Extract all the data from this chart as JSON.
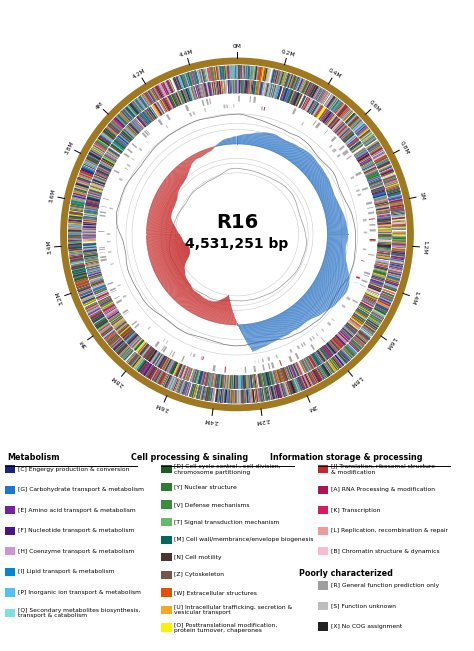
{
  "title": "R16",
  "subtitle": "4,531,251 bp",
  "genome_size": 4531251,
  "background_color": "#ffffff",
  "outer_ring_color": "#a07820",
  "tick_labels": [
    "0M",
    "0.2M",
    "0.4M",
    "0.6M",
    "0.8M",
    "1M",
    "1.2M",
    "1.4M",
    "1.6M",
    "1.8M",
    "2M",
    "2.2M",
    "2.4M",
    "2.6M",
    "2.8M",
    "3M",
    "3.2M",
    "3.4M",
    "3.6M",
    "3.8M",
    "4M",
    "4.2M",
    "4.4M"
  ],
  "cog_colors": {
    "C": "#1a237e",
    "G": "#1976d2",
    "E": "#7b1fa2",
    "F": "#4a148c",
    "H": "#ce93d8",
    "I": "#0288d1",
    "P": "#4fc3f7",
    "Q": "#80deea",
    "D": "#1b5e20",
    "Y": "#2e7d32",
    "V": "#388e3c",
    "T": "#66bb6a",
    "M": "#00695c",
    "N": "#4e342e",
    "Z": "#795548",
    "W": "#e65100",
    "U": "#f9a825",
    "O": "#f9f107",
    "J": "#c62828",
    "A": "#ad1457",
    "K": "#d81b60",
    "L": "#ef9a9a",
    "B": "#f8bbd0",
    "R": "#9e9e9e",
    "S": "#bdbdbd",
    "X": "#212121"
  },
  "legend_metabolism": [
    {
      "code": "C",
      "color": "#1a237e",
      "label": "[C] Engergy production & conversion"
    },
    {
      "code": "G",
      "color": "#1976d2",
      "label": "[G] Carbohydrate transport & metabolism"
    },
    {
      "code": "E",
      "color": "#7b1fa2",
      "label": "[E] Amino acid transport & metabolism"
    },
    {
      "code": "F",
      "color": "#4a148c",
      "label": "[F] Nucleotide transport & metabolism"
    },
    {
      "code": "H",
      "color": "#ce93d8",
      "label": "[H] Coenzyme transport & metabolism"
    },
    {
      "code": "I",
      "color": "#0288d1",
      "label": "[I] Lipid transport & metabolism"
    },
    {
      "code": "P",
      "color": "#4fc3f7",
      "label": "[P] Inorganic ion transport & metabolism"
    },
    {
      "code": "Q",
      "color": "#80deea",
      "label": "[Q] Secondary metabolites biosynthesis,\ntransport & catabolism"
    }
  ],
  "legend_cell": [
    {
      "code": "D",
      "color": "#1b5e20",
      "label": "[D] Cell cycle control , cell division,\nchromosome partitioning"
    },
    {
      "code": "Y",
      "color": "#2e7d32",
      "label": "[Y] Nuclear structure"
    },
    {
      "code": "V",
      "color": "#388e3c",
      "label": "[V] Defense mechanisms"
    },
    {
      "code": "T",
      "color": "#66bb6a",
      "label": "[T] Signal transduction mechanism"
    },
    {
      "code": "M",
      "color": "#00695c",
      "label": "[M] Cell wall/membrance/envelope biogenesis"
    },
    {
      "code": "N",
      "color": "#4e342e",
      "label": "[N] Cell motility"
    },
    {
      "code": "Z",
      "color": "#795548",
      "label": "[Z] Cytoskeleton"
    },
    {
      "code": "W",
      "color": "#e65100",
      "label": "[W] Extracellular structures"
    },
    {
      "code": "U",
      "color": "#f9a825",
      "label": "[U] Intracellular trafficking, secretion &\nvesicular transport"
    },
    {
      "code": "O",
      "color": "#f9f107",
      "label": "[O] Posttranslational modification,\nprotein turnover, chaperones"
    }
  ],
  "legend_info": [
    {
      "code": "J",
      "color": "#c62828",
      "label": "[J] Translation, ribosomal structure\n& modification"
    },
    {
      "code": "A",
      "color": "#ad1457",
      "label": "[A] RNA Processing & modification"
    },
    {
      "code": "K",
      "color": "#d81b60",
      "label": "[K] Transcription"
    },
    {
      "code": "L",
      "color": "#ef9a9a",
      "label": "[L] Replication, recombination & repair"
    },
    {
      "code": "B",
      "color": "#f8bbd0",
      "label": "[B] Chromatin structure & dynamics"
    }
  ],
  "legend_poor": [
    {
      "code": "R",
      "color": "#9e9e9e",
      "label": "[R] General function prediction only"
    },
    {
      "code": "S",
      "color": "#bdbdbd",
      "label": "[S] Function unknown"
    },
    {
      "code": "X",
      "color": "#212121",
      "label": "[X] No COG assignment"
    }
  ]
}
